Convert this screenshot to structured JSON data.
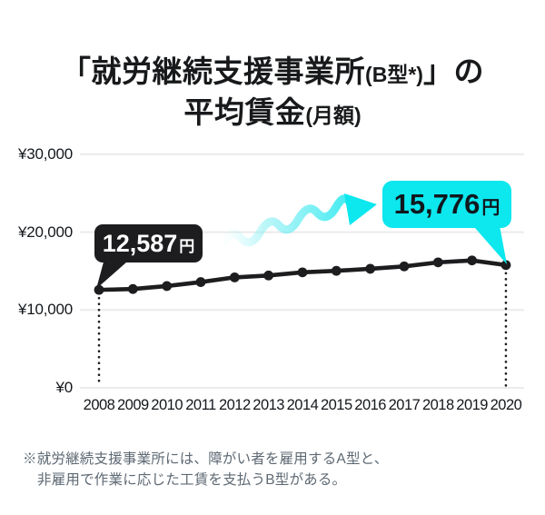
{
  "title": {
    "line1_prefix": "「就労継続支援事業所",
    "line1_paren": "(B型*)",
    "line1_suffix": "」の",
    "line2_main": "平均賃金",
    "line2_paren": "(月額)"
  },
  "callouts": {
    "start": {
      "value": "12,587",
      "unit": "円"
    },
    "end": {
      "value": "15,776",
      "unit": "円"
    }
  },
  "footnote": {
    "line1": "※就労継続支援事業所には、障がい者を雇用するA型と、",
    "line2": "非雇用で作業に応じた工賃を支払うB型がある。"
  },
  "colors": {
    "accent_cyan": "#0de7ee",
    "ink": "#1d1d1f",
    "grid": "#ebebeb",
    "footnote_gray": "#5e6973"
  },
  "chart_data": {
    "type": "line",
    "title": "「就労継続支援事業所(B型*)」の平均賃金(月額)",
    "x": [
      2008,
      2009,
      2010,
      2011,
      2012,
      2013,
      2014,
      2015,
      2016,
      2017,
      2018,
      2019,
      2020
    ],
    "series": [
      {
        "name": "平均賃金(月額)",
        "values": [
          12587,
          12695,
          13079,
          13586,
          14190,
          14437,
          14838,
          15033,
          15295,
          15603,
          16118,
          16369,
          15776
        ]
      }
    ],
    "y_ticks": {
      "values": [
        0,
        10000,
        20000,
        30000
      ],
      "labels": [
        "¥0",
        "¥10,000",
        "¥20,000",
        "¥30,000"
      ]
    },
    "ylim": [
      0,
      32500
    ],
    "grid": true,
    "legend": false,
    "annotations": [
      {
        "x": 2008,
        "label": "12,587円",
        "style": "dark-bubble"
      },
      {
        "x": 2020,
        "label": "15,776円",
        "style": "cyan-bubble"
      }
    ]
  }
}
